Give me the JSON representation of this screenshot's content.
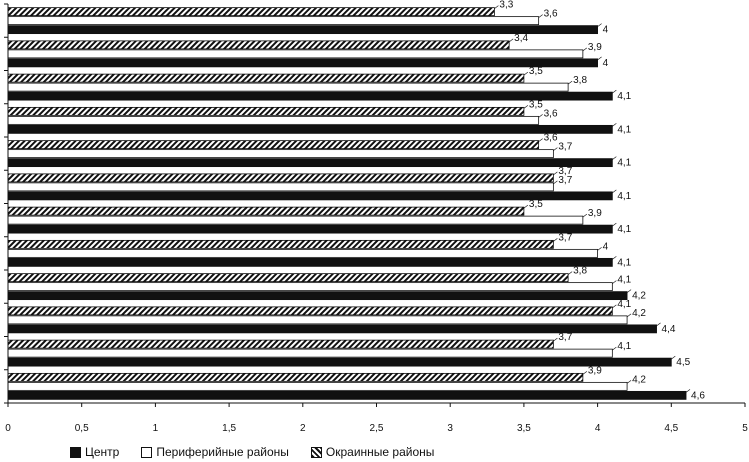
{
  "chart_data": {
    "type": "bar",
    "orientation": "horizontal",
    "title": "",
    "xlabel": "",
    "ylabel": "",
    "xlim": [
      0,
      5
    ],
    "xticks": [
      "0",
      "0,5",
      "1",
      "1,5",
      "2",
      "2,5",
      "3",
      "3,5",
      "4",
      "4,5",
      "5"
    ],
    "category_count": 12,
    "series": [
      {
        "name": "Центр",
        "values": [
          4,
          4,
          4.1,
          4.1,
          4.1,
          4.1,
          4.1,
          4.1,
          4.2,
          4.4,
          4.5,
          4.6
        ],
        "labels": [
          "4",
          "4",
          "4,1",
          "4,1",
          "4,1",
          "4,1",
          "4,1",
          "4,1",
          "4,2",
          "4,4",
          "4,5",
          "4,6"
        ]
      },
      {
        "name": "Периферийные районы",
        "values": [
          3.6,
          3.9,
          3.8,
          3.6,
          3.7,
          3.7,
          3.9,
          4,
          4.1,
          4.2,
          4.1,
          4.2
        ],
        "labels": [
          "3,6",
          "3,9",
          "3,8",
          "3,6",
          "3,7",
          "3,7",
          "3,9",
          "4",
          "4,1",
          "4,2",
          "4,1",
          "4,2"
        ]
      },
      {
        "name": "Окраинные районы",
        "values": [
          3.3,
          3.4,
          3.5,
          3.5,
          3.6,
          3.7,
          3.5,
          3.7,
          3.8,
          4.1,
          3.7,
          3.9
        ],
        "labels": [
          "3,3",
          "3,4",
          "3,5",
          "3,5",
          "3,6",
          "3,7",
          "3,5",
          "3,7",
          "3,8",
          "4,1",
          "3,7",
          "3,9"
        ]
      }
    ],
    "legend_position": "bottom",
    "colors": {
      "Центр": "#111111",
      "Периферийные районы": "#ffffff",
      "Окраинные районы": "hatched"
    }
  }
}
